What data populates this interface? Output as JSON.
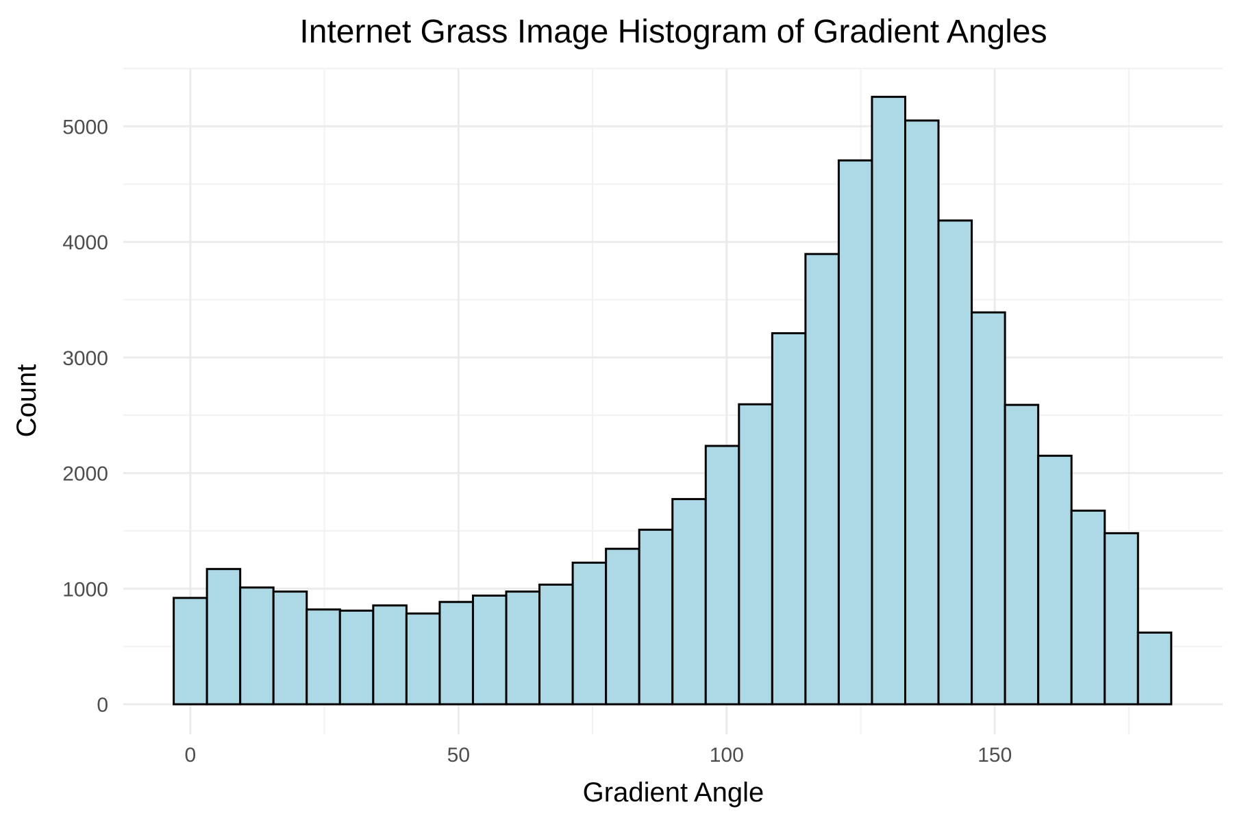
{
  "chart_data": {
    "type": "bar",
    "title": "Internet Grass Image Histogram of Gradient Angles",
    "xlabel": "Gradient Angle",
    "ylabel": "Count",
    "xlim": [
      -12.5,
      192.5
    ],
    "ylim": [
      -260,
      5500
    ],
    "x_ticks": [
      0,
      50,
      100,
      150
    ],
    "y_ticks": [
      0,
      1000,
      2000,
      3000,
      4000,
      5000
    ],
    "x_tick_labels": [
      "0",
      "50",
      "100",
      "150"
    ],
    "y_tick_labels": [
      "0",
      "1000",
      "2000",
      "3000",
      "4000",
      "5000"
    ],
    "grid": true,
    "legend": "none",
    "bin_width": 6.2,
    "bin_centers": [
      0,
      6.2,
      12.4,
      18.6,
      24.8,
      31.0,
      37.2,
      43.4,
      49.6,
      55.8,
      62.0,
      68.2,
      74.4,
      80.6,
      86.8,
      93.0,
      99.2,
      105.4,
      111.6,
      117.8,
      124.0,
      130.2,
      136.4,
      142.6,
      148.8,
      155.0,
      161.2,
      167.4,
      173.6,
      179.8
    ],
    "values": [
      920,
      1170,
      1010,
      975,
      820,
      810,
      855,
      785,
      885,
      940,
      975,
      1035,
      1225,
      1345,
      1510,
      1775,
      2235,
      2595,
      3210,
      3895,
      4705,
      5255,
      5050,
      4185,
      3390,
      2590,
      2150,
      1675,
      1480,
      620
    ],
    "colors": {
      "bar_fill": "#add8e6",
      "bar_stroke": "#000000",
      "grid": "#ebebeb",
      "tick_text": "#4d4d4d"
    }
  }
}
